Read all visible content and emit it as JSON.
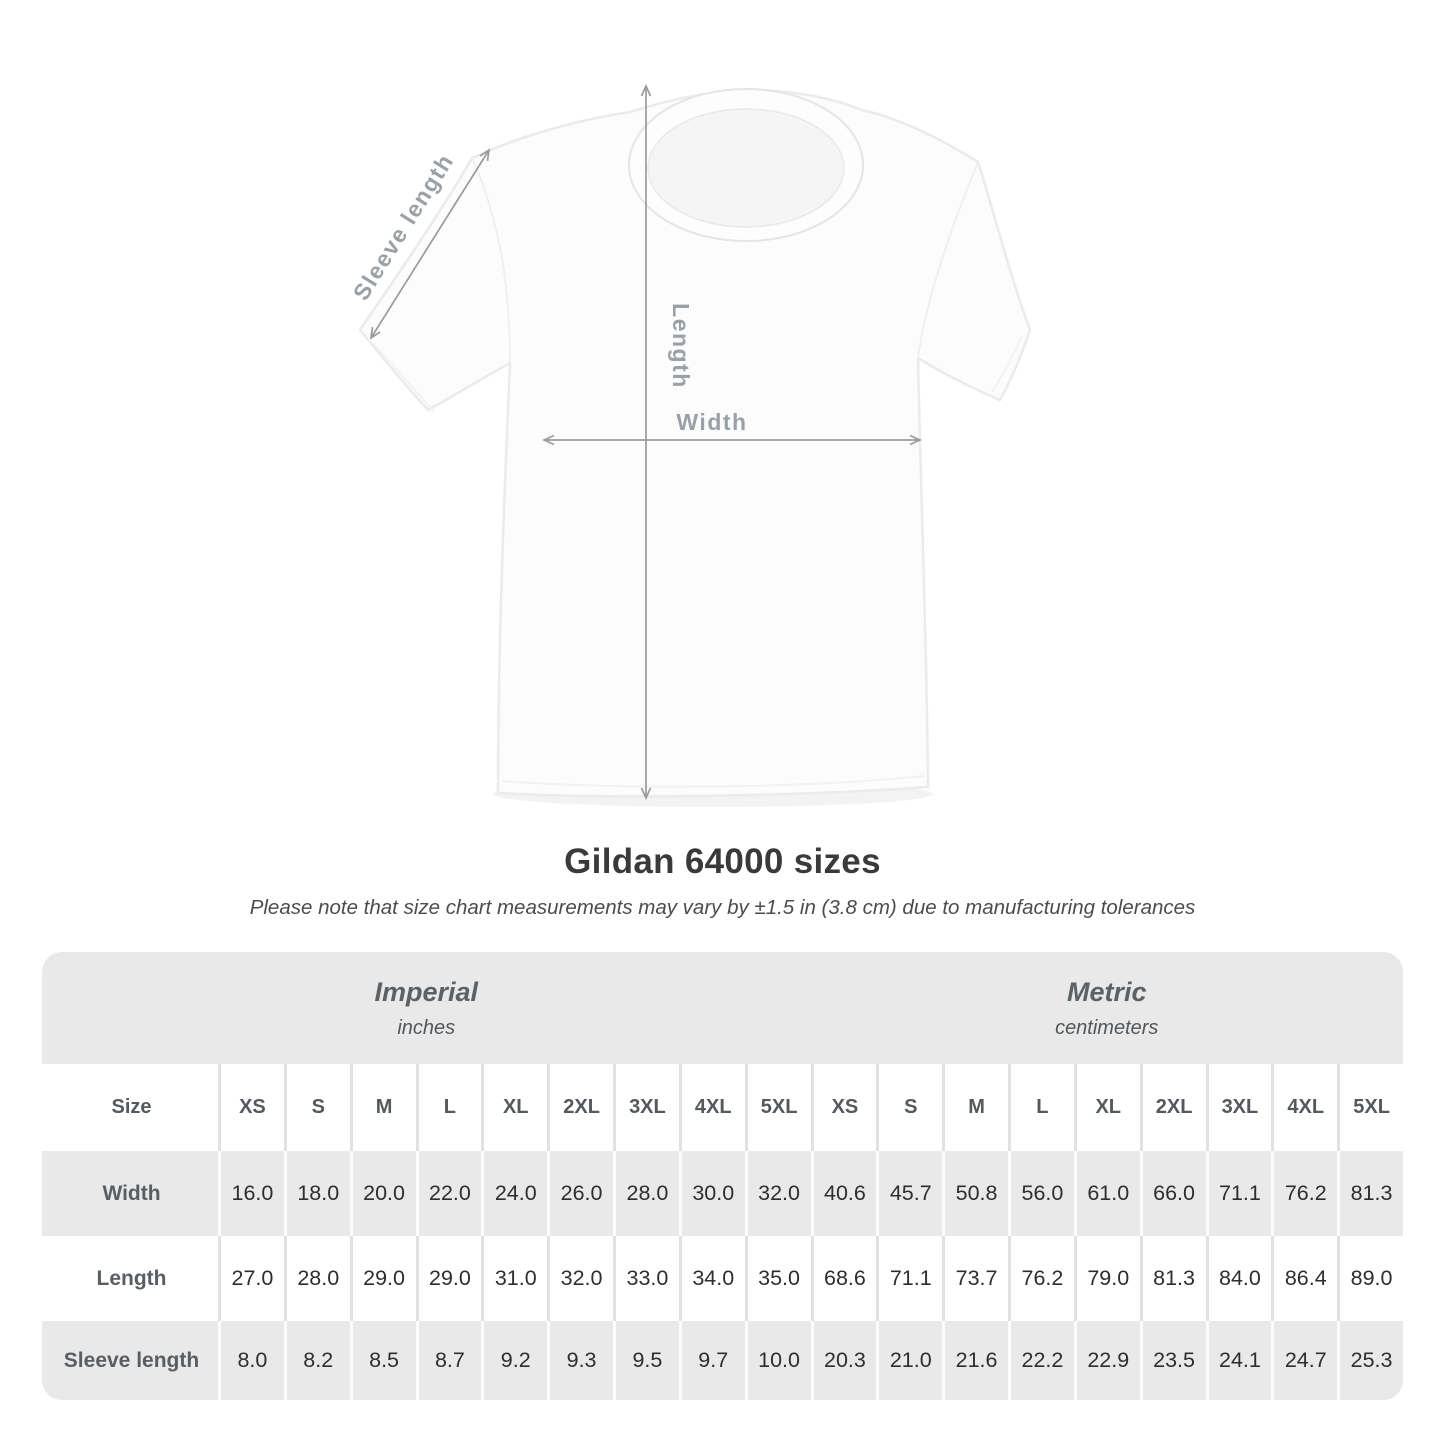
{
  "title": "Gildan 64000 sizes",
  "subtitle": "Please note that size chart measurements may vary by ±1.5 in (3.8 cm) due to manufacturing tolerances",
  "diagram": {
    "sleeve_label": "Sleeve length",
    "length_label": "Length",
    "width_label": "Width"
  },
  "table": {
    "size_header": "Size",
    "groups": [
      {
        "label": "Imperial",
        "unit": "inches"
      },
      {
        "label": "Metric",
        "unit": "centimeters"
      }
    ],
    "sizes": [
      "XS",
      "S",
      "M",
      "L",
      "XL",
      "2XL",
      "3XL",
      "4XL",
      "5XL"
    ],
    "rows": [
      {
        "label": "Width",
        "imperial": [
          "16.0",
          "18.0",
          "20.0",
          "22.0",
          "24.0",
          "26.0",
          "28.0",
          "30.0",
          "32.0"
        ],
        "metric": [
          "40.6",
          "45.7",
          "50.8",
          "56.0",
          "61.0",
          "66.0",
          "71.1",
          "76.2",
          "81.3"
        ]
      },
      {
        "label": "Length",
        "imperial": [
          "27.0",
          "28.0",
          "29.0",
          "29.0",
          "31.0",
          "32.0",
          "33.0",
          "34.0",
          "35.0"
        ],
        "metric": [
          "68.6",
          "71.1",
          "73.7",
          "76.2",
          "79.0",
          "81.3",
          "84.0",
          "86.4",
          "89.0"
        ]
      },
      {
        "label": "Sleeve length",
        "imperial": [
          "8.0",
          "8.2",
          "8.5",
          "8.7",
          "9.2",
          "9.3",
          "9.5",
          "9.7",
          "10.0"
        ],
        "metric": [
          "20.3",
          "21.0",
          "21.6",
          "22.2",
          "22.9",
          "23.5",
          "24.1",
          "24.7",
          "25.3"
        ]
      }
    ]
  },
  "colors": {
    "table_bg": "#e9e9e9",
    "row_white": "#ffffff",
    "value_text": "#2e2e2e",
    "label_text": "#5a5e62",
    "arrow_gray": "#9b9b9b",
    "diagram_label_gray": "#9aa0a6"
  },
  "chart_data": {
    "type": "table",
    "title": "Gildan 64000 sizes",
    "note": "Please note that size chart measurements may vary by ±1.5 in (3.8 cm) due to manufacturing tolerances",
    "column_groups": [
      {
        "label": "Imperial",
        "unit": "inches",
        "columns": [
          "XS",
          "S",
          "M",
          "L",
          "XL",
          "2XL",
          "3XL",
          "4XL",
          "5XL"
        ]
      },
      {
        "label": "Metric",
        "unit": "centimeters",
        "columns": [
          "XS",
          "S",
          "M",
          "L",
          "XL",
          "2XL",
          "3XL",
          "4XL",
          "5XL"
        ]
      }
    ],
    "rows": [
      {
        "measurement": "Width",
        "imperial_in": [
          16.0,
          18.0,
          20.0,
          22.0,
          24.0,
          26.0,
          28.0,
          30.0,
          32.0
        ],
        "metric_cm": [
          40.6,
          45.7,
          50.8,
          56.0,
          61.0,
          66.0,
          71.1,
          76.2,
          81.3
        ]
      },
      {
        "measurement": "Length",
        "imperial_in": [
          27.0,
          28.0,
          29.0,
          29.0,
          31.0,
          32.0,
          33.0,
          34.0,
          35.0
        ],
        "metric_cm": [
          68.6,
          71.1,
          73.7,
          76.2,
          79.0,
          81.3,
          84.0,
          86.4,
          89.0
        ]
      },
      {
        "measurement": "Sleeve length",
        "imperial_in": [
          8.0,
          8.2,
          8.5,
          8.7,
          9.2,
          9.3,
          9.5,
          9.7,
          10.0
        ],
        "metric_cm": [
          20.3,
          21.0,
          21.6,
          22.2,
          22.9,
          23.5,
          24.1,
          24.7,
          25.3
        ]
      }
    ]
  }
}
